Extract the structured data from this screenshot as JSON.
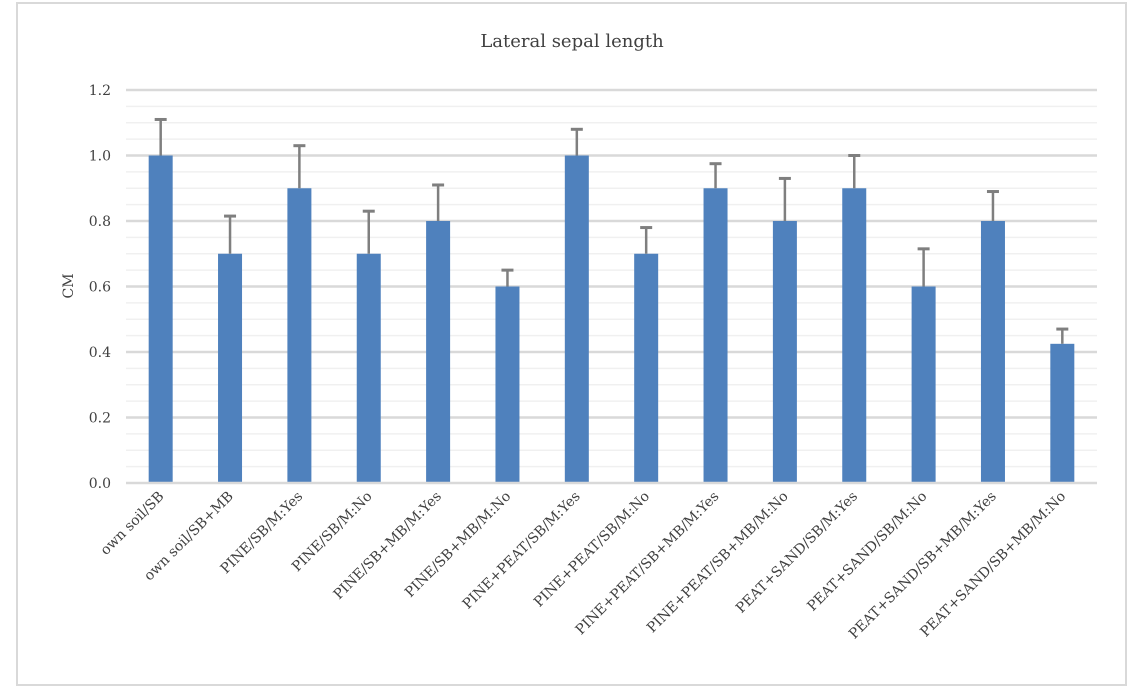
{
  "chart_data": {
    "type": "bar",
    "title": "Lateral sepal length",
    "xlabel": "",
    "ylabel": "CM",
    "ylim": [
      0,
      1.2
    ],
    "yticks": [
      "0.0",
      "0.2",
      "0.4",
      "0.6",
      "0.8",
      "1.0",
      "1.2"
    ],
    "grid": true,
    "categories": [
      "own soil/SB",
      "own soil/SB+MB",
      "PINE/SB/M:Yes",
      "PINE/SB/M:No",
      "PINE/SB+MB/M:Yes",
      "PINE/SB+MB/M:No",
      "PINE+PEAT/SB/M:Yes",
      "PINE+PEAT/SB/M:No",
      "PINE+PEAT/SB+MB/M:Yes",
      "PINE+PEAT/SB+MB/M:No",
      "PEAT+SAND/SB/M:Yes",
      "PEAT+SAND/SB/M:No",
      "PEAT+SAND/SB+MB/M:Yes",
      "PEAT+SAND/SB+MB/M:No"
    ],
    "values": [
      1.0,
      0.7,
      0.9,
      0.7,
      0.8,
      0.6,
      1.0,
      0.7,
      0.9,
      0.8,
      0.9,
      0.6,
      0.8,
      0.425
    ],
    "errors": [
      0.11,
      0.115,
      0.13,
      0.13,
      0.11,
      0.05,
      0.08,
      0.08,
      0.075,
      0.13,
      0.1,
      0.115,
      0.09,
      0.045
    ],
    "bar_color": "#4f81bd",
    "error_color": "#7f7f7f"
  }
}
